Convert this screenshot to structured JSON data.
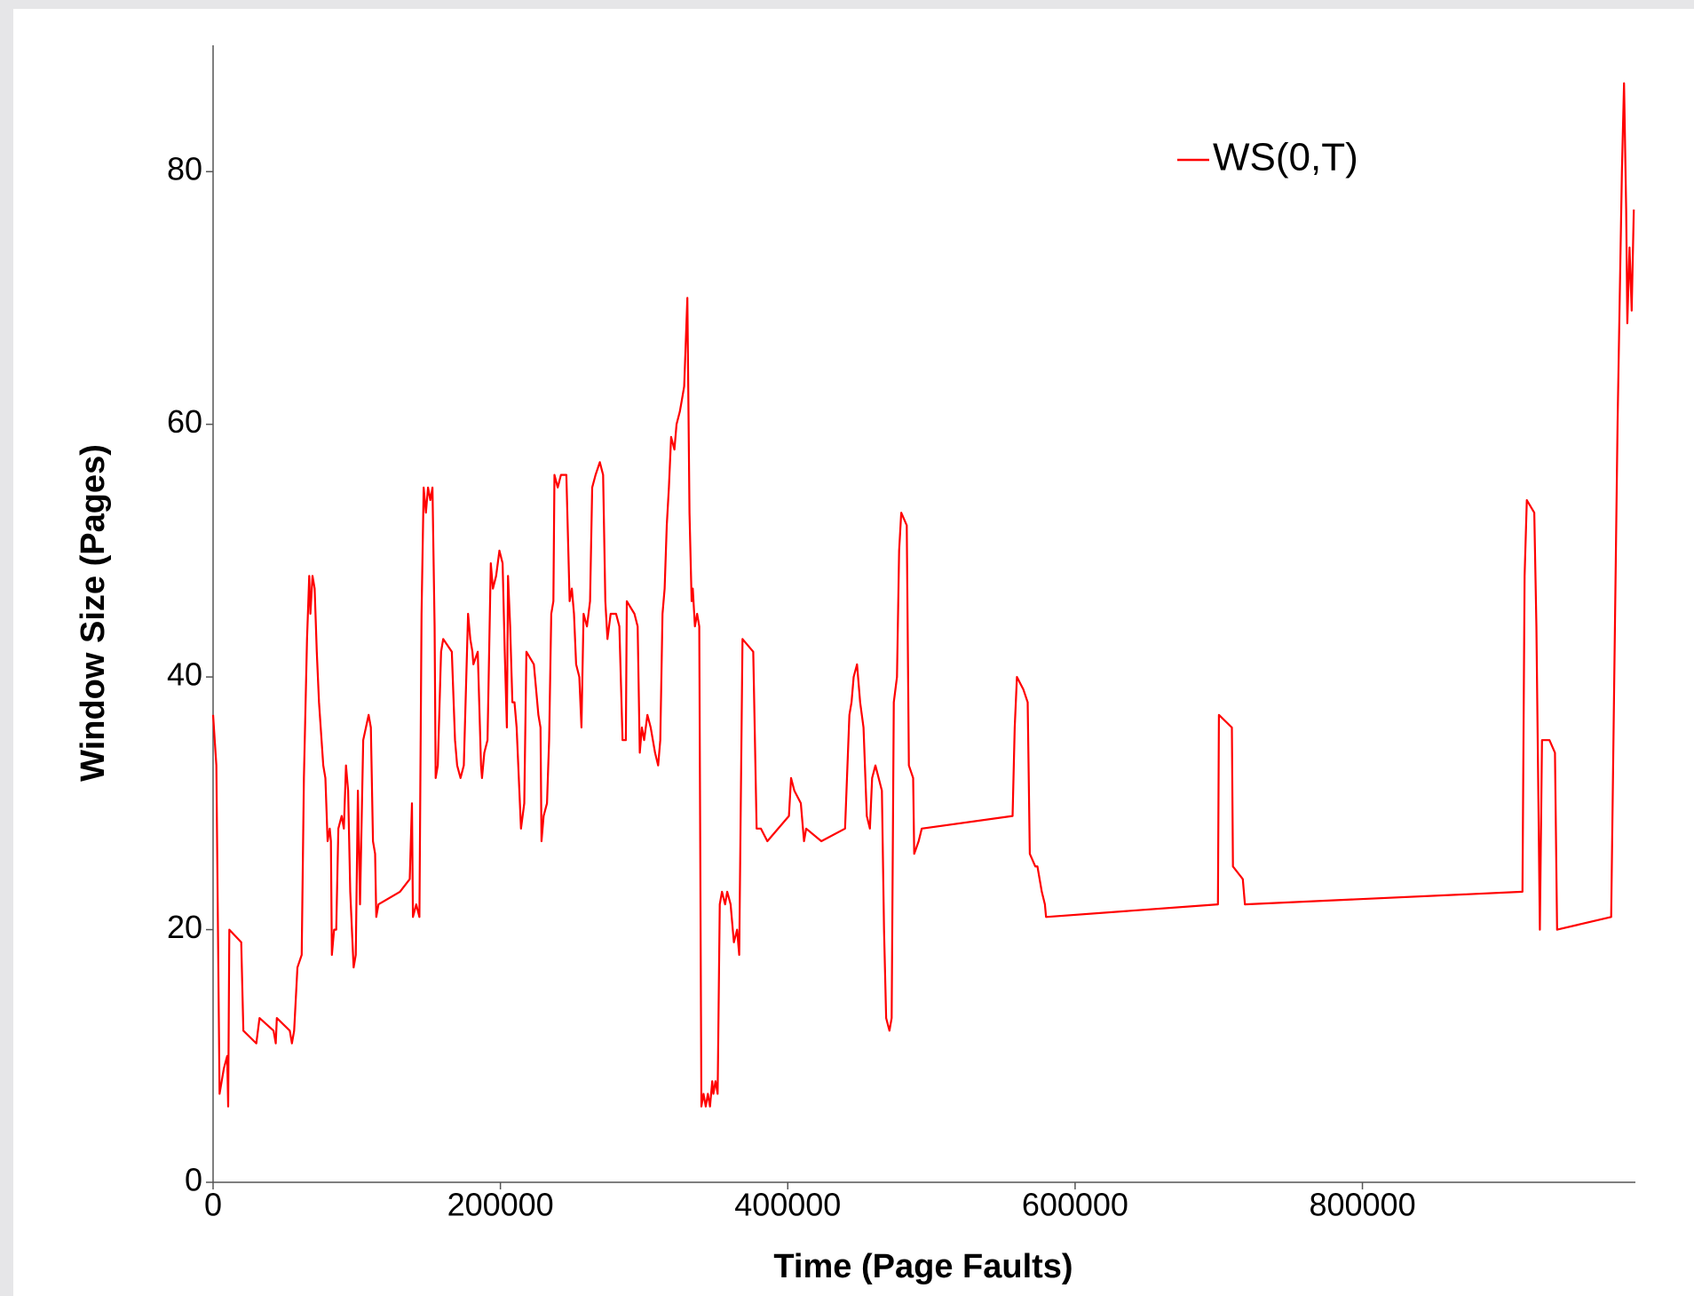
{
  "chart_data": {
    "type": "line",
    "x_label": "Time (Page Faults)",
    "y_label": "Window Size (Pages)",
    "xlim": [
      0,
      990000
    ],
    "ylim": [
      0,
      90
    ],
    "xticks": [
      0,
      200000,
      400000,
      600000,
      800000
    ],
    "yticks": [
      0,
      20,
      40,
      60,
      80
    ],
    "legend": "upper right",
    "x": [
      0,
      2300,
      4500,
      7500,
      9800,
      10500,
      11300,
      19600,
      21100,
      30100,
      32300,
      42100,
      43600,
      44400,
      53400,
      54900,
      56400,
      58700,
      61700,
      63200,
      65400,
      66900,
      67700,
      69200,
      70700,
      72200,
      73700,
      76700,
      78200,
      79700,
      81200,
      82000,
      82700,
      84200,
      85700,
      87200,
      89500,
      91000,
      92500,
      94000,
      95500,
      97000,
      97800,
      99300,
      100800,
      102300,
      104500,
      108300,
      109800,
      111300,
      112800,
      113600,
      115100,
      130100,
      136900,
      138400,
      139100,
      141400,
      143600,
      145100,
      146600,
      148100,
      149600,
      151200,
      152700,
      154200,
      154900,
      156400,
      158700,
      160200,
      166200,
      168400,
      169900,
      172200,
      174500,
      177500,
      179000,
      180500,
      181200,
      184200,
      186500,
      187200,
      188800,
      191000,
      193300,
      194800,
      197000,
      199300,
      201500,
      203000,
      204500,
      205300,
      206800,
      208300,
      209800,
      211300,
      214300,
      216600,
      218100,
      223300,
      226400,
      227900,
      228600,
      230100,
      232400,
      233900,
      235400,
      236900,
      237600,
      239900,
      242100,
      245900,
      248200,
      249700,
      251200,
      252700,
      254900,
      256400,
      257900,
      260200,
      262400,
      263900,
      266200,
      269200,
      271500,
      273000,
      274500,
      276700,
      280500,
      282800,
      285000,
      287300,
      288000,
      293300,
      295500,
      297000,
      298500,
      300000,
      302300,
      304600,
      307600,
      309800,
      311300,
      312800,
      314300,
      315800,
      317300,
      318800,
      321100,
      322600,
      324900,
      326400,
      327900,
      330100,
      331600,
      333100,
      333900,
      335400,
      336900,
      338400,
      339900,
      341400,
      342900,
      344400,
      345900,
      347400,
      348200,
      349700,
      351200,
      352700,
      354200,
      356400,
      357900,
      360200,
      362500,
      364700,
      366200,
      368500,
      376000,
      378300,
      381300,
      385800,
      400800,
      402300,
      404600,
      409100,
      411300,
      412800,
      423400,
      439900,
      442900,
      444400,
      445900,
      448200,
      450400,
      452700,
      455000,
      457200,
      458700,
      461000,
      465500,
      467000,
      468500,
      470800,
      472300,
      473800,
      476000,
      477500,
      479000,
      482800,
      484300,
      487300,
      488000,
      491100,
      493300,
      556500,
      558000,
      559500,
      564000,
      567000,
      568500,
      572300,
      573800,
      576800,
      579000,
      579800,
      699400,
      700100,
      709100,
      709900,
      716700,
      718200,
      911400,
      912900,
      914400,
      919600,
      921100,
      923500,
      925000,
      930200,
      934000,
      935500,
      973100,
      977600,
      980600,
      982100,
      983600,
      984400,
      985900,
      987400,
      988900
    ],
    "series": [
      {
        "name": "WS(0,T)",
        "color": "#ff0000",
        "values": [
          37,
          33,
          7,
          9,
          10,
          6,
          20,
          19,
          12,
          11,
          13,
          12,
          11,
          13,
          12,
          11,
          12,
          17,
          18,
          32,
          43,
          48,
          45,
          48,
          47,
          42,
          38,
          33,
          32,
          27,
          28,
          27,
          18,
          20,
          20,
          28,
          29,
          28,
          33,
          31,
          23,
          19,
          17,
          18,
          31,
          22,
          35,
          37,
          36,
          27,
          26,
          21,
          22,
          23,
          24,
          30,
          21,
          22,
          21,
          45,
          55,
          53,
          55,
          54,
          55,
          44,
          32,
          33,
          42,
          43,
          42,
          35,
          33,
          32,
          33,
          45,
          43,
          42,
          41,
          42,
          33,
          32,
          34,
          35,
          49,
          47,
          48,
          50,
          49,
          42,
          36,
          48,
          44,
          38,
          38,
          36,
          28,
          30,
          42,
          41,
          37,
          36,
          27,
          29,
          30,
          35,
          45,
          46,
          56,
          55,
          56,
          56,
          46,
          47,
          45,
          41,
          40,
          36,
          45,
          44,
          46,
          55,
          56,
          57,
          56,
          46,
          43,
          45,
          45,
          44,
          35,
          35,
          46,
          45,
          44,
          34,
          36,
          35,
          37,
          36,
          34,
          33,
          35,
          45,
          47,
          52,
          55,
          59,
          58,
          60,
          61,
          62,
          63,
          70,
          53,
          46,
          47,
          44,
          45,
          44,
          6,
          7,
          6,
          7,
          6,
          8,
          7,
          8,
          7,
          22,
          23,
          22,
          23,
          22,
          19,
          20,
          18,
          43,
          42,
          28,
          28,
          27,
          29,
          32,
          31,
          30,
          27,
          28,
          27,
          28,
          37,
          38,
          40,
          41,
          38,
          36,
          29,
          28,
          32,
          33,
          31,
          20,
          13,
          12,
          13,
          38,
          40,
          50,
          53,
          52,
          33,
          32,
          26,
          27,
          28,
          29,
          36,
          40,
          39,
          38,
          26,
          25,
          25,
          23,
          22,
          21,
          22,
          37,
          36,
          25,
          24,
          22,
          23,
          48,
          54,
          53,
          44,
          20,
          35,
          35,
          34,
          20,
          21,
          60,
          80,
          87,
          77,
          68,
          74,
          69,
          77
        ]
      }
    ]
  }
}
